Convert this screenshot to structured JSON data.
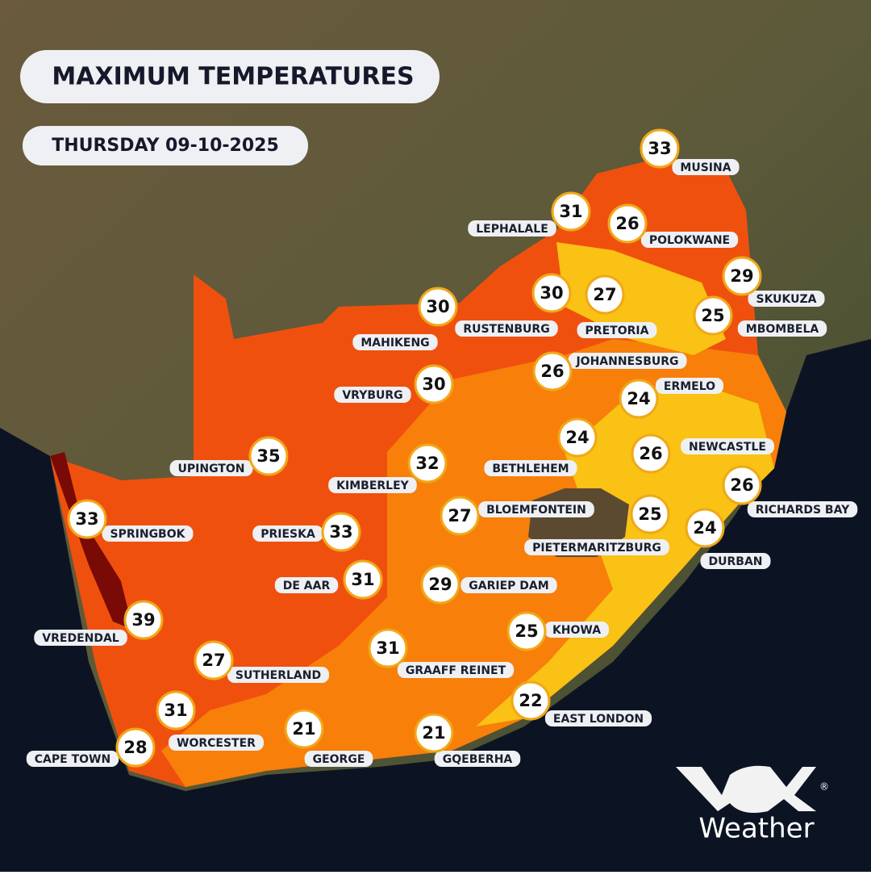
{
  "title": "MAXIMUM TEMPERATURES",
  "date": "THURSDAY 09-10-2025",
  "cities": [
    {
      "name": "MUSINA",
      "temp": "33"
    },
    {
      "name": "LEPHALALE",
      "temp": "31"
    },
    {
      "name": "POLOKWANE",
      "temp": "26"
    },
    {
      "name": "SKUKUZA",
      "temp": "29"
    },
    {
      "name": "MBOMBELA",
      "temp": "25"
    },
    {
      "name": "PRETORIA",
      "temp": "27"
    },
    {
      "name": "RUSTENBURG",
      "temp": "30"
    },
    {
      "name": "MAHIKENG",
      "temp": "30"
    },
    {
      "name": "JOHANNESBURG",
      "temp": "26"
    },
    {
      "name": "ERMELO",
      "temp": "24"
    },
    {
      "name": "VRYBURG",
      "temp": "30"
    },
    {
      "name": "UPINGTON",
      "temp": "35"
    },
    {
      "name": "KIMBERLEY",
      "temp": "32"
    },
    {
      "name": "BETHLEHEM",
      "temp": "24"
    },
    {
      "name": "NEWCASTLE",
      "temp": "26"
    },
    {
      "name": "BLOEMFONTEIN",
      "temp": "27"
    },
    {
      "name": "RICHARDS BAY",
      "temp": "26"
    },
    {
      "name": "PIETERMARITZBURG",
      "temp": "25"
    },
    {
      "name": "DURBAN",
      "temp": "24"
    },
    {
      "name": "SPRINGBOK",
      "temp": "33"
    },
    {
      "name": "PRIESKA",
      "temp": "33"
    },
    {
      "name": "DE AAR",
      "temp": "31"
    },
    {
      "name": "GARIEP DAM",
      "temp": "29"
    },
    {
      "name": "KHOWA",
      "temp": "25"
    },
    {
      "name": "VREDENDAL",
      "temp": "39"
    },
    {
      "name": "GRAAFF REINET",
      "temp": "31"
    },
    {
      "name": "SUTHERLAND",
      "temp": "27"
    },
    {
      "name": "EAST LONDON",
      "temp": "22"
    },
    {
      "name": "WORCESTER",
      "temp": "31"
    },
    {
      "name": "GEORGE",
      "temp": "21"
    },
    {
      "name": "GQEBERHA",
      "temp": "21"
    },
    {
      "name": "CAPE TOWN",
      "temp": "28"
    }
  ],
  "logo": {
    "text": "Weather",
    "registered": "®"
  }
}
